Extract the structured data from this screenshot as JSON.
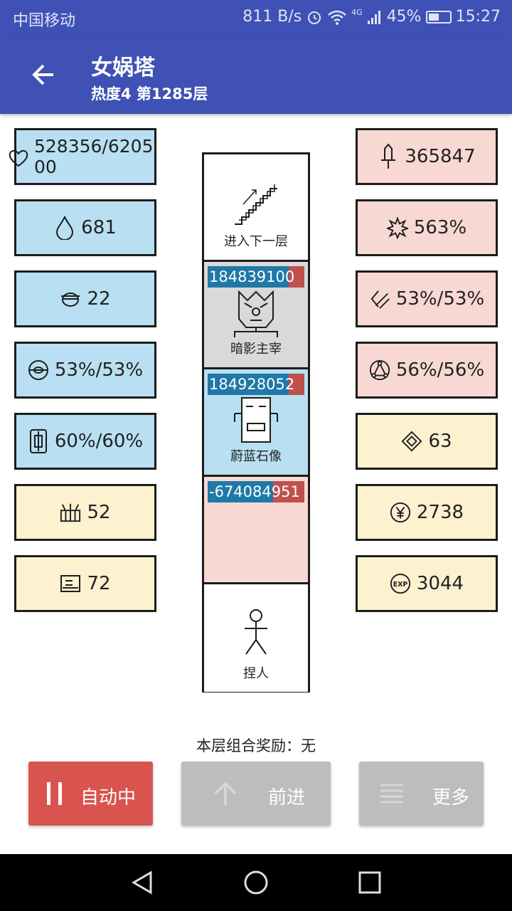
{
  "status": {
    "carrier": "中国移动",
    "speed": "811 B/s",
    "network": "4G",
    "battery": "45%",
    "time": "15:27"
  },
  "header": {
    "title": "女娲塔",
    "subtitle": "热度4 第1285层"
  },
  "left_stats": [
    {
      "icon": "heart-icon",
      "value": "528356/620500"
    },
    {
      "icon": "water-drop-icon",
      "value": "681"
    },
    {
      "icon": "helmet-icon",
      "value": "22"
    },
    {
      "icon": "eye-orb-icon",
      "value": "53%/53%"
    },
    {
      "icon": "shield-frame-icon",
      "value": "60%/60%"
    },
    {
      "icon": "basket-icon",
      "value": "52"
    },
    {
      "icon": "card-icon",
      "value": "72"
    }
  ],
  "right_stats": [
    {
      "icon": "sword-icon",
      "value": "365847"
    },
    {
      "icon": "burst-icon",
      "value": "563%"
    },
    {
      "icon": "crit-slash-icon",
      "value": "53%/53%"
    },
    {
      "icon": "triangle-rune-icon",
      "value": "56%/56%"
    },
    {
      "icon": "diamond-gem-icon",
      "value": "63"
    },
    {
      "icon": "yen-coin-icon",
      "value": "2738"
    },
    {
      "icon": "exp-icon",
      "value": "3044"
    }
  ],
  "tower": {
    "stairs_label": "进入下一层",
    "monsters": [
      {
        "name": "暗影主宰",
        "hp": "18483910",
        "hp_tail": "0",
        "hp_fill": 0.84
      },
      {
        "name": "蔚蓝石像",
        "hp": "18492805",
        "hp_tail": "2",
        "hp_fill": 0.84
      },
      {
        "name": "",
        "hp": "-674084",
        "hp_tail": "951",
        "hp_fill": 0.68
      }
    ],
    "player_label": "捏人"
  },
  "bonus": {
    "label": "本层组合奖励：",
    "value": "无"
  },
  "buttons": {
    "auto": "自动中",
    "forward": "前进",
    "more": "更多"
  },
  "colors": {
    "primary": "#3f51b5",
    "blue_cell": "#b8e0f2",
    "pink_cell": "#f8d8d3",
    "yellow_cell": "#fdf1cf",
    "auto_button": "#d9534f",
    "hp_bar": "#1f78a8",
    "hp_red": "#c0504d"
  }
}
